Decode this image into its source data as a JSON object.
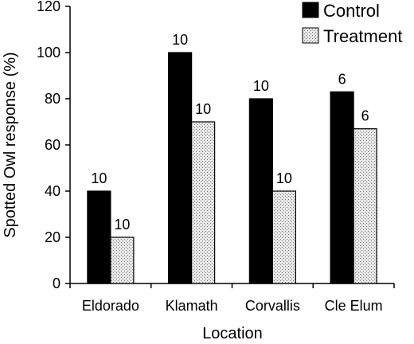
{
  "chart_data": {
    "type": "bar",
    "title": "",
    "xlabel": "Location",
    "ylabel": "Spotted Owl response (%)",
    "ylim": [
      0,
      120
    ],
    "yticks": [
      "0",
      "20",
      "40",
      "60",
      "80",
      "100",
      "120"
    ],
    "grid": false,
    "legend_position": "top-right",
    "categories": [
      "Eldorado",
      "Klamath",
      "Corvallis",
      "Cle Elum"
    ],
    "series": [
      {
        "name": "Control",
        "values": [
          40,
          100,
          80,
          83
        ],
        "n_labels": [
          "10",
          "10",
          "10",
          "6"
        ],
        "fill": "solid-black",
        "color": "#000000"
      },
      {
        "name": "Treatment",
        "values": [
          20,
          70,
          40,
          67
        ],
        "n_labels": [
          "10",
          "10",
          "10",
          "6"
        ],
        "fill": "stippled-gray",
        "color": "#d9d9d9"
      }
    ]
  }
}
